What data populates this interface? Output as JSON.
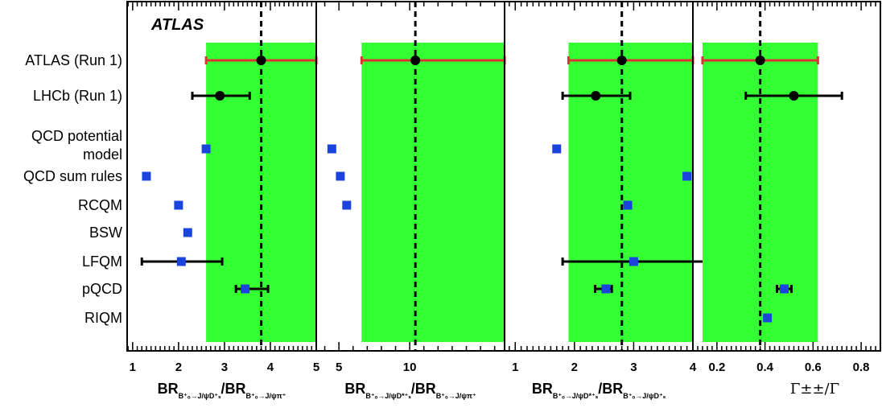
{
  "figure_label": "ATLAS",
  "row_labels": [
    {
      "key": "atlas",
      "lines": [
        "ATLAS (Run 1)"
      ]
    },
    {
      "key": "lhcb",
      "lines": [
        "LHCb (Run 1)"
      ]
    },
    {
      "key": "qcd-potential",
      "lines": [
        "QCD potential",
        "model"
      ]
    },
    {
      "key": "qcd-sum-rules",
      "lines": [
        "QCD sum rules"
      ]
    },
    {
      "key": "rcqm",
      "lines": [
        "RCQM"
      ]
    },
    {
      "key": "bsw",
      "lines": [
        "BSW"
      ]
    },
    {
      "key": "lfqm",
      "lines": [
        "LFQM"
      ]
    },
    {
      "key": "pqcd",
      "lines": [
        "pQCD"
      ]
    },
    {
      "key": "riqm",
      "lines": [
        "RIQM"
      ]
    }
  ],
  "colors": {
    "band": "#33ff33",
    "atlas_error": "#dd3333",
    "measurement": "#000000",
    "theory": "#1a44dd"
  },
  "chart_data": [
    {
      "type": "scatter",
      "title": "",
      "xlabel": {
        "main1": "BR",
        "sub1": "B⁺ₒ→J/ψD⁺ₛ",
        "sep": "/",
        "main2": "BR",
        "sub2": "B⁺ₒ→J/ψπ⁺"
      },
      "xlim": [
        0.88,
        5.0
      ],
      "xticks": [
        1,
        2,
        3,
        4,
        5
      ],
      "tick_labels": [
        "1",
        "2",
        "3",
        "4",
        "5"
      ],
      "band": [
        2.6,
        5.0
      ],
      "central": 3.8,
      "measurements": [
        {
          "name": "ATLAS (Run 1)",
          "x": 3.8,
          "lo": 2.6,
          "hi": 5.0,
          "color": "atlas"
        },
        {
          "name": "LHCb (Run 1)",
          "x": 2.9,
          "lo": 2.3,
          "hi": 3.55,
          "color": "black"
        }
      ],
      "theory": [
        {
          "name": "QCD potential model",
          "x": 2.6
        },
        {
          "name": "QCD sum rules",
          "x": 1.3
        },
        {
          "name": "RCQM",
          "x": 2.0
        },
        {
          "name": "BSW",
          "x": 2.2
        },
        {
          "name": "LFQM",
          "x": 2.06,
          "lo": 1.2,
          "hi": 2.95
        },
        {
          "name": "pQCD",
          "x": 3.45,
          "lo": 3.25,
          "hi": 3.95
        },
        {
          "name": "RIQM",
          "x": null
        }
      ]
    },
    {
      "type": "scatter",
      "title": "",
      "xlabel": {
        "main1": "BR",
        "sub1": "B⁺ₒ→J/ψD*⁺ₛ",
        "sep": "/",
        "main2": "BR",
        "sub2": "B⁺ₒ→J/ψπ⁺"
      },
      "xlim": [
        3.4,
        16.7
      ],
      "xticks": [
        5,
        10
      ],
      "tick_labels": [
        "5",
        "10"
      ],
      "band": [
        6.6,
        16.7
      ],
      "central": 10.4,
      "measurements": [
        {
          "name": "ATLAS (Run 1)",
          "x": 10.4,
          "lo": 6.6,
          "hi": 16.7,
          "color": "atlas"
        },
        {
          "name": "LHCb (Run 1)",
          "x": null
        }
      ],
      "theory": [
        {
          "name": "QCD potential model",
          "x": 4.5
        },
        {
          "name": "QCD sum rules",
          "x": 5.1
        },
        {
          "name": "RCQM",
          "x": 5.55
        },
        {
          "name": "BSW",
          "x": null
        },
        {
          "name": "LFQM",
          "x": null
        },
        {
          "name": "pQCD",
          "x": null
        },
        {
          "name": "RIQM",
          "x": null
        }
      ]
    },
    {
      "type": "scatter",
      "title": "",
      "xlabel": {
        "main1": "BR",
        "sub1": "B⁺ₒ→J/ψD*⁺ₛ",
        "sep": "/",
        "main2": "BR",
        "sub2": "B⁺ₒ→J/ψD⁺ₛ"
      },
      "xlim": [
        0.82,
        4.0
      ],
      "xticks": [
        1,
        2,
        3,
        4
      ],
      "tick_labels": [
        "1",
        "2",
        "3",
        "4"
      ],
      "band": [
        1.9,
        4.0
      ],
      "central": 2.8,
      "measurements": [
        {
          "name": "ATLAS (Run 1)",
          "x": 2.8,
          "lo": 1.9,
          "hi": 4.0,
          "color": "atlas"
        },
        {
          "name": "LHCb (Run 1)",
          "x": 2.36,
          "lo": 1.8,
          "hi": 2.94,
          "color": "black"
        }
      ],
      "theory": [
        {
          "name": "QCD potential model",
          "x": 1.7
        },
        {
          "name": "QCD sum rules",
          "x": 3.9
        },
        {
          "name": "RCQM",
          "x": 2.9
        },
        {
          "name": "BSW",
          "x": null
        },
        {
          "name": "LFQM",
          "x": 3.0,
          "lo": 1.8,
          "hi": 4.25
        },
        {
          "name": "pQCD",
          "x": 2.53,
          "lo": 2.35,
          "hi": 2.63
        },
        {
          "name": "RIQM",
          "x": null
        }
      ]
    },
    {
      "type": "scatter",
      "title": "",
      "xlabel": {
        "gamma": "Γ±±/Γ"
      },
      "xlim": [
        0.1,
        0.88
      ],
      "xticks": [
        0.2,
        0.4,
        0.6,
        0.8
      ],
      "tick_labels": [
        "0.2",
        "0.4",
        "0.6",
        "0.8"
      ],
      "band": [
        0.14,
        0.62
      ],
      "central": 0.38,
      "measurements": [
        {
          "name": "ATLAS (Run 1)",
          "x": 0.38,
          "lo": 0.14,
          "hi": 0.62,
          "color": "atlas"
        },
        {
          "name": "LHCb (Run 1)",
          "x": 0.52,
          "lo": 0.32,
          "hi": 0.72,
          "color": "black"
        }
      ],
      "theory": [
        {
          "name": "QCD potential model",
          "x": null
        },
        {
          "name": "QCD sum rules",
          "x": null
        },
        {
          "name": "RCQM",
          "x": null
        },
        {
          "name": "BSW",
          "x": null
        },
        {
          "name": "LFQM",
          "x": null
        },
        {
          "name": "pQCD",
          "x": 0.48,
          "lo": 0.45,
          "hi": 0.51
        },
        {
          "name": "RIQM",
          "x": 0.41
        }
      ]
    }
  ]
}
